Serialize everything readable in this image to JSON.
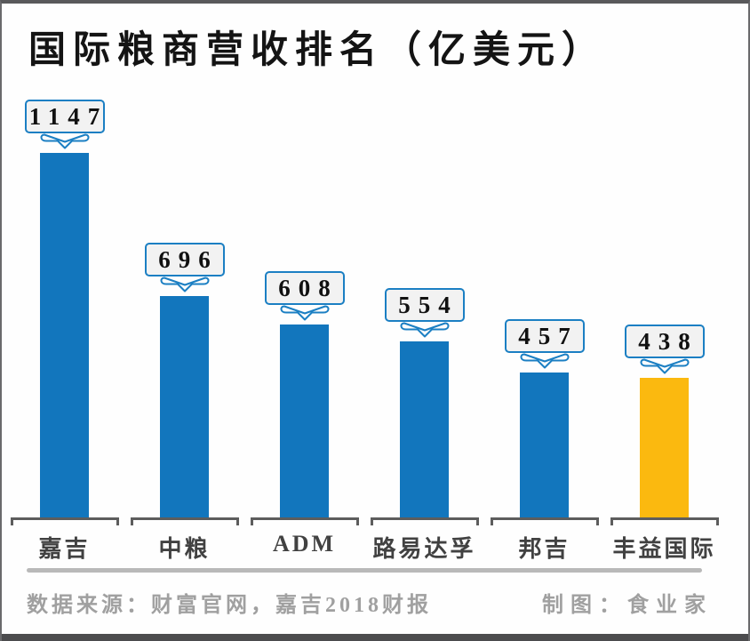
{
  "title": "国际粮商营收排名（亿美元）",
  "chart_data": {
    "type": "bar",
    "title": "国际粮商营收排名（亿美元）",
    "categories": [
      "嘉吉",
      "中粮",
      "ADM",
      "路易达孚",
      "邦吉",
      "丰益国际"
    ],
    "values": [
      1147,
      696,
      608,
      554,
      457,
      438
    ],
    "value_labels": [
      "1147",
      "696",
      "608",
      "554",
      "457",
      "438"
    ],
    "bar_colors": [
      "#1276bd",
      "#1276bd",
      "#1276bd",
      "#1276bd",
      "#1276bd",
      "#fbb90f"
    ],
    "xlabel": "",
    "ylabel": "",
    "ylim": [
      0,
      1200
    ],
    "grid": false,
    "legend_position": "none",
    "annotation_style": "value-callout-with-down-arrow-above-each-bar"
  },
  "colors": {
    "bar_blue": "#1276bd",
    "bar_yellow": "#fbb90f",
    "callout_border": "#1b7fc3",
    "callout_fill": "#f2f2f2",
    "bracket_gray": "#5d5d5d",
    "divider_gray": "#b9b9b9",
    "footer_gray": "#a0a0a0",
    "frame_dark": "#59595b"
  },
  "footer": {
    "source": "数据来源：财富官网，嘉吉2018财报",
    "credit": "制图：食业家"
  }
}
